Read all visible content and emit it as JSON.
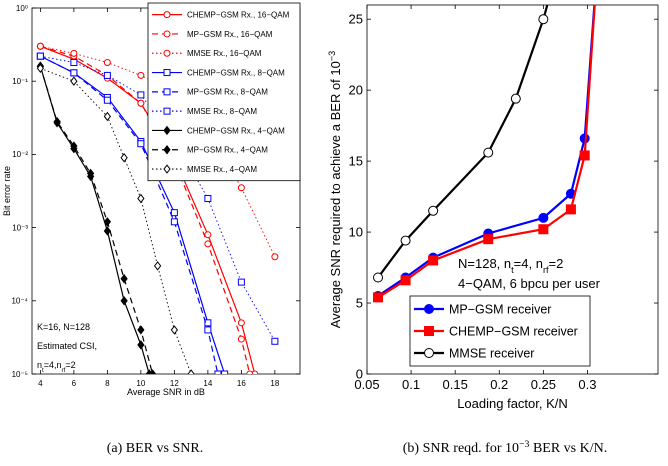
{
  "chart_data": [
    {
      "type": "line",
      "log_y": true,
      "xlabel": "Average SNR in dB",
      "ylabel": "Bit error rate",
      "xlim": [
        3.5,
        19.5
      ],
      "xticks": [
        4,
        6,
        8,
        10,
        12,
        14,
        16,
        18
      ],
      "ylim": [
        1e-05,
        1
      ],
      "yticks": [
        {
          "value": 1e-05,
          "label": "10⁻⁵"
        },
        {
          "value": 0.0001,
          "label": "10⁻⁴"
        },
        {
          "value": 0.001,
          "label": "10⁻³"
        },
        {
          "value": 0.01,
          "label": "10⁻²"
        },
        {
          "value": 0.1,
          "label": "10⁻¹"
        },
        {
          "value": 1,
          "label": "10⁰"
        }
      ],
      "legend": "upper right",
      "annotations": [
        [
          "K=16, N=128"
        ],
        [
          "Estimated CSI,"
        ],
        [
          "n",
          "t",
          "=4,n",
          "rf",
          "=2"
        ]
      ],
      "series": [
        {
          "name": "CHEMP−GSM Rx., 16−QAM",
          "color": "#ff0000",
          "linestyle": "-",
          "marker": "o",
          "markerfill": "#ffffff",
          "x": [
            4,
            6,
            8,
            10,
            12,
            14,
            16,
            16.8
          ],
          "values": [
            0.3,
            0.2,
            0.11,
            0.05,
            0.009,
            0.0008,
            5e-05,
            1e-05
          ]
        },
        {
          "name": "MP−GSM Rx., 16−QAM",
          "color": "#ff0000",
          "linestyle": "--",
          "marker": "o",
          "markerfill": "#ffffff",
          "x": [
            4,
            6,
            8,
            10,
            12,
            14,
            16,
            16.5
          ],
          "values": [
            0.3,
            0.22,
            0.12,
            0.05,
            0.008,
            0.0006,
            3e-05,
            1e-05
          ]
        },
        {
          "name": "MMSE Rx., 16−QAM",
          "color": "#ff0000",
          "linestyle": ":",
          "marker": "o",
          "markerfill": "#ffffff",
          "x": [
            4,
            6,
            8,
            10,
            12,
            14,
            16,
            18
          ],
          "values": [
            0.3,
            0.24,
            0.18,
            0.12,
            0.07,
            0.021,
            0.0035,
            0.0004
          ]
        },
        {
          "name": "CHEMP−GSM Rx., 8−QAM",
          "color": "#0000ff",
          "linestyle": "-",
          "marker": "s",
          "markerfill": "#ffffff",
          "x": [
            4,
            6,
            8,
            10,
            12,
            14,
            15
          ],
          "values": [
            0.22,
            0.13,
            0.06,
            0.015,
            0.0016,
            5e-05,
            1e-05
          ]
        },
        {
          "name": "MP−GSM Rx., 8−QAM",
          "color": "#0000ff",
          "linestyle": "--",
          "marker": "s",
          "markerfill": "#ffffff",
          "x": [
            4,
            6,
            8,
            10,
            12,
            14,
            14.6
          ],
          "values": [
            0.22,
            0.13,
            0.055,
            0.014,
            0.0012,
            4e-05,
            1e-05
          ]
        },
        {
          "name": "MMSE Rx., 8−QAM",
          "color": "#0000ff",
          "linestyle": ":",
          "marker": "s",
          "markerfill": "#ffffff",
          "x": [
            4,
            6,
            8,
            10,
            12,
            14,
            16,
            18
          ],
          "values": [
            0.22,
            0.18,
            0.12,
            0.065,
            0.016,
            0.0025,
            0.00018,
            2.8e-05
          ]
        },
        {
          "name": "CHEMP−GSM Rx., 4−QAM",
          "color": "#000000",
          "linestyle": "-",
          "marker": "d",
          "markerfill": "#000000",
          "x": [
            4,
            5,
            6,
            7,
            8,
            9,
            10,
            10.5
          ],
          "values": [
            0.16,
            0.027,
            0.012,
            0.005,
            0.0009,
            0.0001,
            2.5e-05,
            1e-05
          ]
        },
        {
          "name": "MP−GSM Rx., 4−QAM",
          "color": "#000000",
          "linestyle": "--",
          "marker": "d",
          "markerfill": "#000000",
          "x": [
            4,
            5,
            6,
            7,
            8,
            9,
            10,
            10.7
          ],
          "values": [
            0.16,
            0.028,
            0.013,
            0.0055,
            0.0012,
            0.0002,
            4e-05,
            1e-05
          ]
        },
        {
          "name": "MMSE Rx., 4−QAM",
          "color": "#000000",
          "linestyle": ":",
          "marker": "d",
          "markerfill": "#ffffff",
          "x": [
            4,
            6,
            8,
            9,
            10,
            11,
            12,
            13
          ],
          "values": [
            0.15,
            0.1,
            0.033,
            0.009,
            0.0025,
            0.0003,
            4e-05,
            1e-05
          ]
        }
      ]
    },
    {
      "type": "line",
      "log_y": false,
      "xlabel": "Loading factor, K/N",
      "ylabel": [
        "Average SNR required to achieve a BER of 10",
        "−3"
      ],
      "xlim": [
        0.05,
        0.38
      ],
      "xticks": [
        0.05,
        0.1,
        0.15,
        0.2,
        0.25,
        0.3
      ],
      "ylim": [
        0,
        26
      ],
      "yticks": [
        0,
        5,
        10,
        15,
        20,
        25
      ],
      "legend": "lower right",
      "annotations": [
        [
          "N=128, n",
          "t",
          "=4, n",
          "rf",
          "=2"
        ],
        [
          "4−QAM, 6 bpcu per user"
        ]
      ],
      "series": [
        {
          "name": "MP−GSM receiver",
          "color": "#0000ff",
          "linestyle": "-",
          "marker": "o",
          "markerfill": "#0000ff",
          "x": [
            0.0625,
            0.09375,
            0.125,
            0.1875,
            0.25,
            0.28125,
            0.296875,
            0.3125
          ],
          "values": [
            5.5,
            6.8,
            8.2,
            9.9,
            11.0,
            12.7,
            16.6,
            30
          ]
        },
        {
          "name": "CHEMP−GSM receiver",
          "color": "#ff0000",
          "linestyle": "-",
          "marker": "s",
          "markerfill": "#ff0000",
          "x": [
            0.0625,
            0.09375,
            0.125,
            0.1875,
            0.25,
            0.28125,
            0.296875,
            0.3125
          ],
          "values": [
            5.4,
            6.6,
            8.0,
            9.5,
            10.2,
            11.6,
            15.4,
            30
          ]
        },
        {
          "name": "MMSE receiver",
          "color": "#000000",
          "linestyle": "-",
          "marker": "o",
          "markerfill": "#ffffff",
          "x": [
            0.0625,
            0.09375,
            0.125,
            0.1875,
            0.21875,
            0.25,
            0.28125
          ],
          "values": [
            6.8,
            9.4,
            11.5,
            15.6,
            19.4,
            25,
            32
          ]
        }
      ]
    }
  ],
  "captions": [
    [
      "(a) BER vs SNR."
    ],
    [
      "(b) SNR reqd. for 10",
      "−3",
      " BER vs K/N."
    ]
  ]
}
